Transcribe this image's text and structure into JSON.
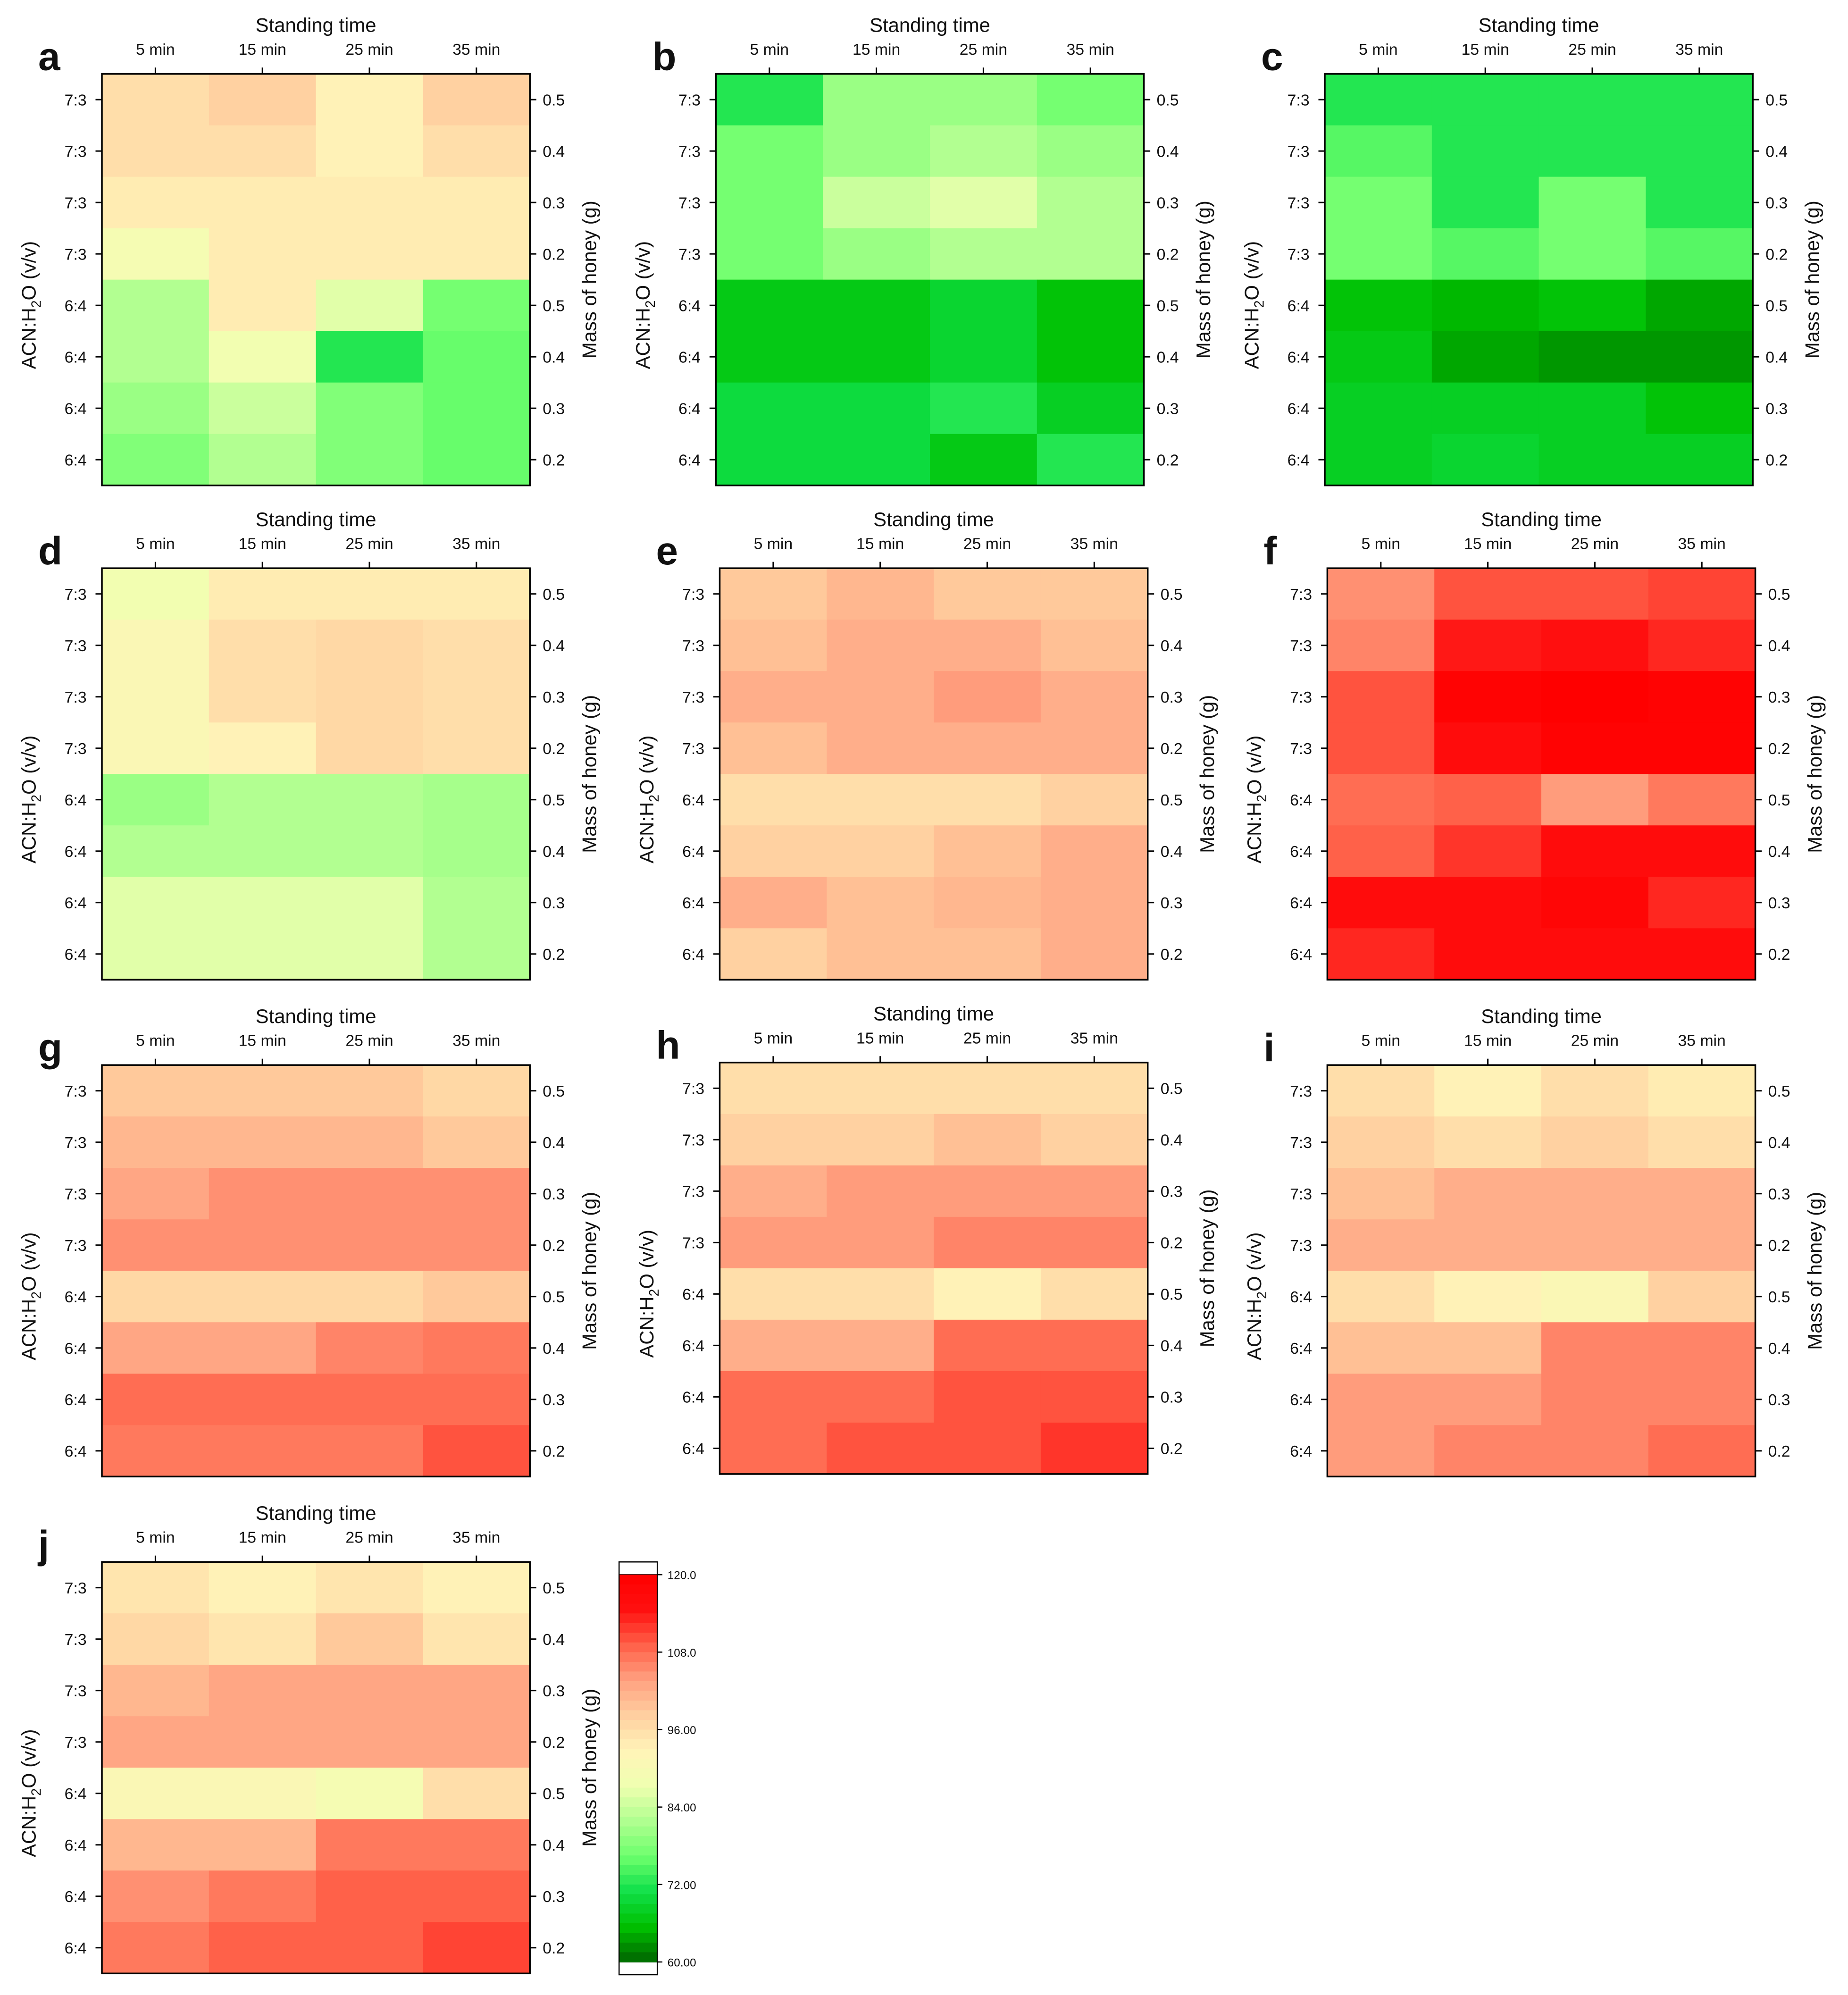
{
  "figure": {
    "column_labels": [
      "5 min",
      "15 min",
      "25 min",
      "35 min"
    ],
    "row_labels": [
      "7:3",
      "7:3",
      "7:3",
      "7:3",
      "6:4",
      "6:4",
      "6:4",
      "6:4"
    ],
    "right_labels": [
      "0.5",
      "0.4",
      "0.3",
      "0.2",
      "0.5",
      "0.4",
      "0.3",
      "0.2"
    ],
    "top_title": "Standing time",
    "left_axis_label": "ACN:H2O (v/v)",
    "right_axis_label": "Mass of honey (g)"
  },
  "chart_data": [
    {
      "type": "heatmap",
      "panel": "a",
      "columns": [
        "5 min",
        "15 min",
        "25 min",
        "35 min"
      ],
      "rows": [
        "7:3",
        "7:3",
        "7:3",
        "7:3",
        "6:4",
        "6:4",
        "6:4",
        "6:4"
      ],
      "values": [
        [
          96,
          98,
          93,
          98
        ],
        [
          96,
          96,
          93,
          96
        ],
        [
          94,
          94,
          94,
          94
        ],
        [
          89,
          94,
          94,
          94
        ],
        [
          82,
          94,
          86,
          77
        ],
        [
          82,
          88,
          72,
          76
        ],
        [
          80,
          84,
          78,
          76
        ],
        [
          78,
          82,
          78,
          76
        ]
      ]
    },
    {
      "type": "heatmap",
      "panel": "b",
      "columns": [
        "5 min",
        "15 min",
        "25 min",
        "35 min"
      ],
      "rows": [
        "7:3",
        "7:3",
        "7:3",
        "7:3",
        "6:4",
        "6:4",
        "6:4",
        "6:4"
      ],
      "values": [
        [
          72,
          80,
          80,
          77
        ],
        [
          77,
          80,
          82,
          80
        ],
        [
          77,
          84,
          86,
          82
        ],
        [
          77,
          80,
          82,
          82
        ],
        [
          67,
          67,
          69,
          66
        ],
        [
          67,
          67,
          69,
          66
        ],
        [
          70,
          70,
          72,
          68
        ],
        [
          70,
          70,
          67,
          72
        ]
      ]
    },
    {
      "type": "heatmap",
      "panel": "c",
      "columns": [
        "5 min",
        "15 min",
        "25 min",
        "35 min"
      ],
      "rows": [
        "7:3",
        "7:3",
        "7:3",
        "7:3",
        "6:4",
        "6:4",
        "6:4",
        "6:4"
      ],
      "values": [
        [
          72,
          72,
          72,
          72
        ],
        [
          75,
          72,
          72,
          72
        ],
        [
          77,
          72,
          77,
          72
        ],
        [
          77,
          75,
          77,
          75
        ],
        [
          66,
          65,
          66,
          64
        ],
        [
          67,
          64,
          63,
          63
        ],
        [
          68,
          68,
          68,
          66
        ],
        [
          68,
          69,
          68,
          68
        ]
      ]
    },
    {
      "type": "heatmap",
      "panel": "d",
      "columns": [
        "5 min",
        "15 min",
        "25 min",
        "35 min"
      ],
      "rows": [
        "7:3",
        "7:3",
        "7:3",
        "7:3",
        "6:4",
        "6:4",
        "6:4",
        "6:4"
      ],
      "values": [
        [
          88,
          94,
          94,
          94
        ],
        [
          91,
          96,
          97,
          96
        ],
        [
          91,
          96,
          97,
          96
        ],
        [
          91,
          93,
          97,
          96
        ],
        [
          80,
          82,
          82,
          81
        ],
        [
          82,
          82,
          82,
          81
        ],
        [
          86,
          86,
          86,
          82
        ],
        [
          86,
          86,
          86,
          82
        ]
      ]
    },
    {
      "type": "heatmap",
      "panel": "e",
      "columns": [
        "5 min",
        "15 min",
        "25 min",
        "35 min"
      ],
      "rows": [
        "7:3",
        "7:3",
        "7:3",
        "7:3",
        "6:4",
        "6:4",
        "6:4",
        "6:4"
      ],
      "values": [
        [
          99,
          101,
          99,
          99
        ],
        [
          100,
          102,
          102,
          100
        ],
        [
          102,
          102,
          104,
          102
        ],
        [
          100,
          102,
          102,
          102
        ],
        [
          96,
          96,
          96,
          98
        ],
        [
          98,
          98,
          100,
          102
        ],
        [
          102,
          100,
          101,
          102
        ],
        [
          98,
          100,
          100,
          102
        ]
      ]
    },
    {
      "type": "heatmap",
      "panel": "f",
      "columns": [
        "5 min",
        "15 min",
        "25 min",
        "35 min"
      ],
      "rows": [
        "7:3",
        "7:3",
        "7:3",
        "7:3",
        "6:4",
        "6:4",
        "6:4",
        "6:4"
      ],
      "values": [
        [
          105,
          110,
          110,
          111
        ],
        [
          106,
          114,
          115,
          113
        ],
        [
          110,
          119,
          120,
          119
        ],
        [
          110,
          116,
          119,
          119
        ],
        [
          108,
          109,
          104,
          107
        ],
        [
          109,
          112,
          116,
          116
        ],
        [
          116,
          116,
          118,
          113
        ],
        [
          113,
          116,
          116,
          116
        ]
      ]
    },
    {
      "type": "heatmap",
      "panel": "g",
      "columns": [
        "5 min",
        "15 min",
        "25 min",
        "35 min"
      ],
      "rows": [
        "7:3",
        "7:3",
        "7:3",
        "7:3",
        "6:4",
        "6:4",
        "6:4",
        "6:4"
      ],
      "values": [
        [
          99,
          99,
          99,
          97
        ],
        [
          101,
          101,
          101,
          99
        ],
        [
          103,
          105,
          105,
          105
        ],
        [
          105,
          105,
          105,
          105
        ],
        [
          97,
          97,
          97,
          99
        ],
        [
          103,
          103,
          106,
          107
        ],
        [
          108,
          108,
          108,
          108
        ],
        [
          107,
          107,
          107,
          110
        ]
      ]
    },
    {
      "type": "heatmap",
      "panel": "h",
      "columns": [
        "5 min",
        "15 min",
        "25 min",
        "35 min"
      ],
      "rows": [
        "7:3",
        "7:3",
        "7:3",
        "7:3",
        "6:4",
        "6:4",
        "6:4",
        "6:4"
      ],
      "values": [
        [
          96,
          96,
          96,
          96
        ],
        [
          98,
          98,
          100,
          98
        ],
        [
          102,
          104,
          104,
          104
        ],
        [
          104,
          104,
          106,
          106
        ],
        [
          96,
          96,
          93,
          96
        ],
        [
          102,
          102,
          108,
          108
        ],
        [
          108,
          108,
          110,
          110
        ],
        [
          108,
          110,
          110,
          112
        ]
      ]
    },
    {
      "type": "heatmap",
      "panel": "i",
      "columns": [
        "5 min",
        "15 min",
        "25 min",
        "35 min"
      ],
      "rows": [
        "7:3",
        "7:3",
        "7:3",
        "7:3",
        "6:4",
        "6:4",
        "6:4",
        "6:4"
      ],
      "values": [
        [
          96,
          93,
          96,
          94
        ],
        [
          98,
          96,
          98,
          96
        ],
        [
          100,
          102,
          102,
          102
        ],
        [
          102,
          102,
          102,
          102
        ],
        [
          96,
          93,
          91,
          98
        ],
        [
          100,
          100,
          106,
          106
        ],
        [
          104,
          104,
          106,
          106
        ],
        [
          104,
          106,
          106,
          108
        ]
      ]
    },
    {
      "type": "heatmap",
      "panel": "j",
      "columns": [
        "5 min",
        "15 min",
        "25 min",
        "35 min"
      ],
      "rows": [
        "7:3",
        "7:3",
        "7:3",
        "7:3",
        "6:4",
        "6:4",
        "6:4",
        "6:4"
      ],
      "values": [
        [
          95,
          93,
          95,
          93
        ],
        [
          97,
          95,
          99,
          95
        ],
        [
          101,
          103,
          103,
          103
        ],
        [
          103,
          103,
          103,
          103
        ],
        [
          91,
          91,
          89,
          96
        ],
        [
          101,
          101,
          107,
          107
        ],
        [
          105,
          107,
          109,
          109
        ],
        [
          107,
          109,
          109,
          111
        ]
      ]
    }
  ],
  "colorbar": {
    "min": 60,
    "max": 120,
    "tick_labels": [
      "120.0",
      "108.0",
      "96.00",
      "84.00",
      "72.00",
      "60.00"
    ],
    "colors_low_to_high": [
      "#006400",
      "#00c000",
      "#10e04a",
      "#6dff6d",
      "#b0ff90",
      "#f0ffb0",
      "#fff4b8",
      "#ffd0a0",
      "#ffa080",
      "#ff6048",
      "#ff1010",
      "#ff0000"
    ]
  }
}
